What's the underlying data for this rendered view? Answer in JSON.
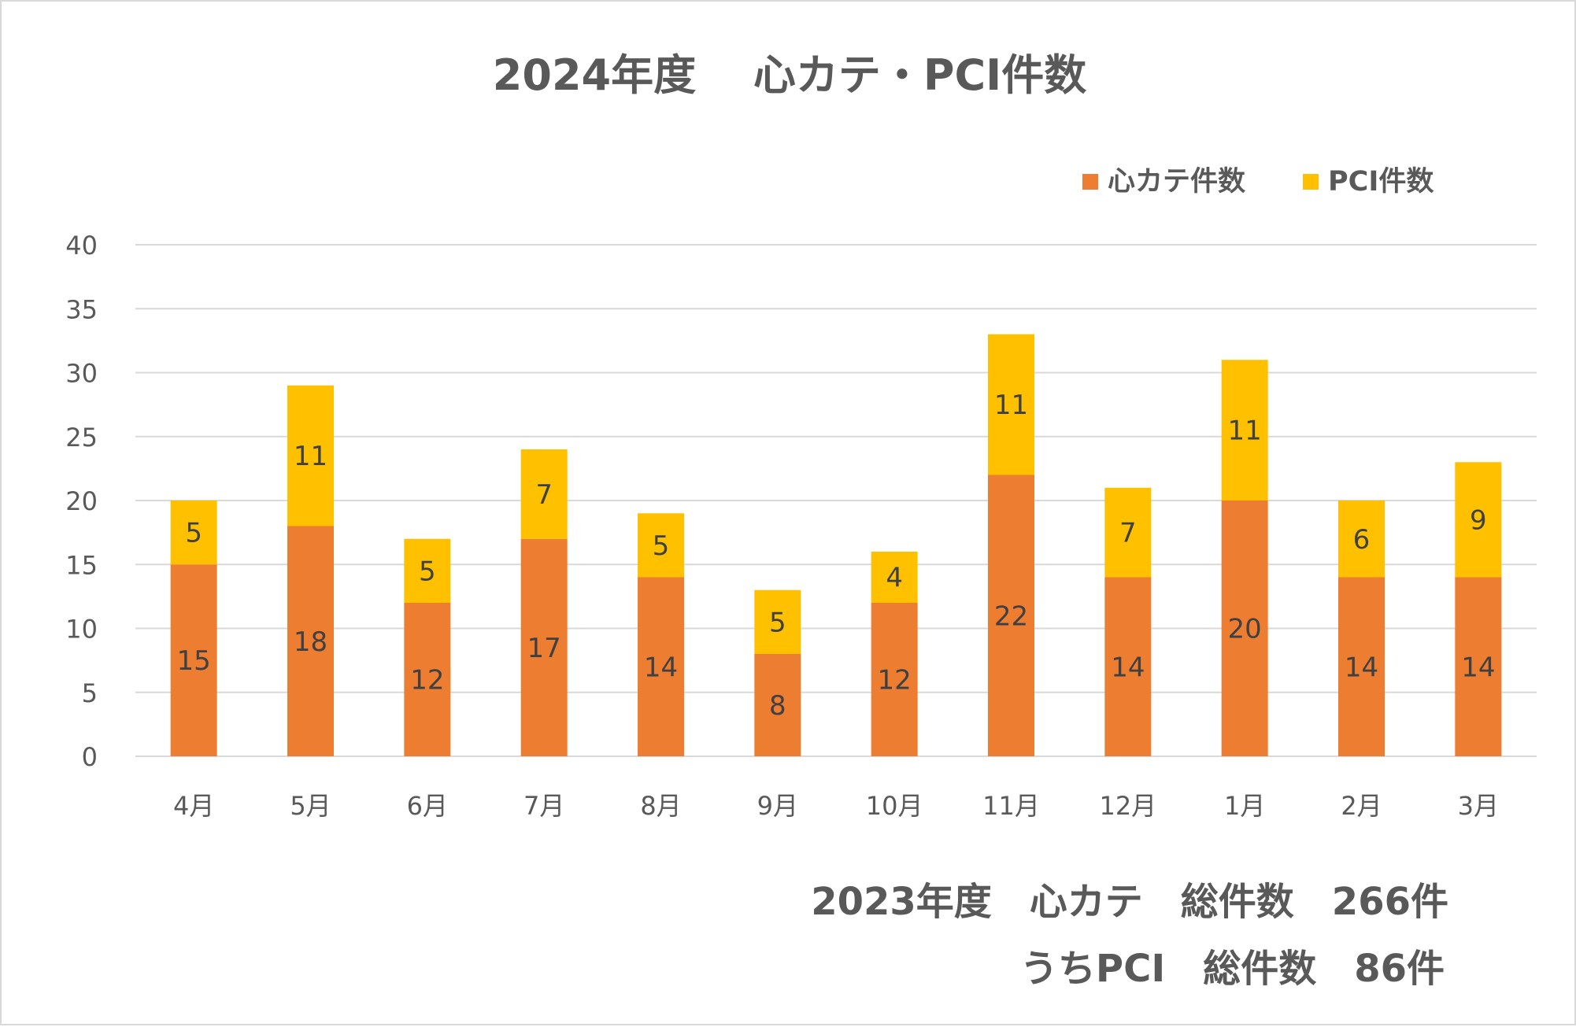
{
  "chart_data": {
    "type": "bar",
    "stacked": true,
    "title": "2024年度　 心カテ・PCI件数",
    "categories": [
      "4月",
      "5月",
      "6月",
      "7月",
      "8月",
      "9月",
      "10月",
      "11月",
      "12月",
      "1月",
      "2月",
      "3月"
    ],
    "series": [
      {
        "name": "心カテ件数",
        "color": "#ed7d31",
        "values": [
          15,
          18,
          12,
          17,
          14,
          8,
          12,
          22,
          14,
          20,
          14,
          14
        ]
      },
      {
        "name": "PCI件数",
        "color": "#ffc000",
        "values": [
          5,
          11,
          5,
          7,
          5,
          5,
          4,
          11,
          7,
          11,
          6,
          9
        ]
      }
    ],
    "ylim": [
      0,
      40
    ],
    "yticks": [
      "0",
      "5",
      "10",
      "15",
      "20",
      "25",
      "30",
      "35",
      "40"
    ],
    "grid": true,
    "legend_position": "top-right",
    "notes": [
      "2023年度　心カテ　総件数　266件",
      "うちPCI　総件数　86件"
    ]
  }
}
